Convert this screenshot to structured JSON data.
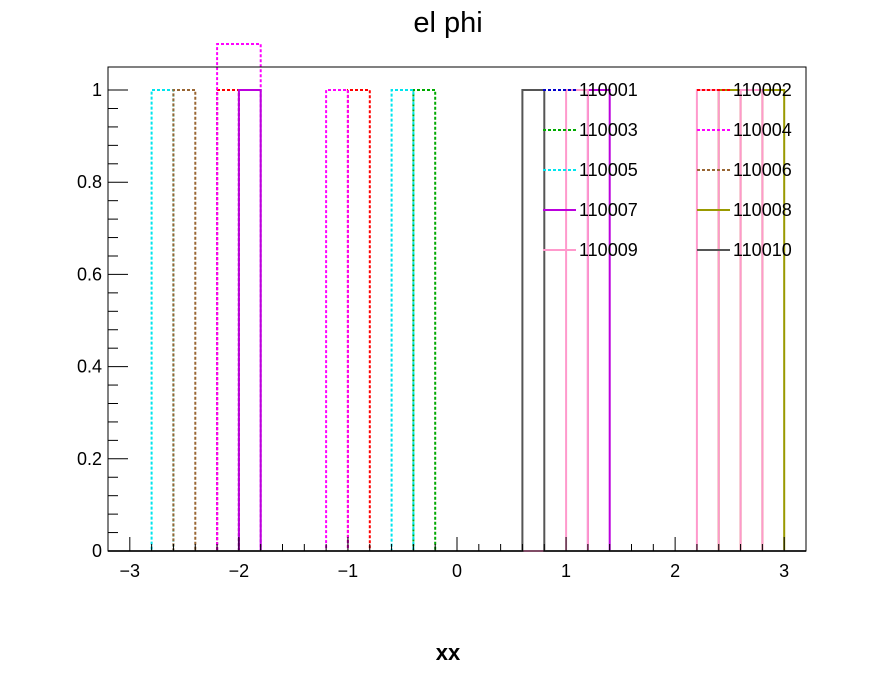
{
  "chart_data": {
    "type": "line",
    "title": "el phi",
    "xlabel": "xx",
    "ylabel": "",
    "xlim": [
      -3.2,
      3.2
    ],
    "ylim": [
      0,
      1.05
    ],
    "grid": false,
    "legend_position": "top-right",
    "x_ticks": [
      -3,
      -2,
      -1,
      0,
      1,
      2,
      3
    ],
    "x_tick_labels": [
      "−3",
      "−2",
      "−1",
      "0",
      "1",
      "2",
      "3"
    ],
    "y_ticks": [
      0,
      0.2,
      0.4,
      0.6,
      0.8,
      1
    ],
    "y_tick_labels": [
      "0",
      "0.2",
      "0.4",
      "0.6",
      "0.8",
      "1"
    ],
    "bin_edges": [
      -3.2,
      -3.0,
      -2.8,
      -2.6,
      -2.4,
      -2.2,
      -2.0,
      -1.8,
      -1.6,
      -1.4,
      -1.2,
      -1.0,
      -0.8,
      -0.6,
      -0.4,
      -0.2,
      0.0,
      0.2,
      0.4,
      0.6,
      0.8,
      1.0,
      1.2,
      1.4,
      1.6,
      1.8,
      2.0,
      2.2,
      2.4,
      2.6,
      2.8,
      3.0,
      3.2
    ],
    "series": [
      {
        "name": "110001",
        "color": "#0000cc",
        "dash": "dotted",
        "filled_bins": [
          [
            -2.2,
            -2.0,
            1
          ]
        ]
      },
      {
        "name": "110002",
        "color": "#ff0000",
        "dash": "dotted",
        "filled_bins": [
          [
            -2.2,
            -1.4,
            1
          ],
          [
            -1.0,
            -0.8,
            1
          ]
        ]
      },
      {
        "name": "110003",
        "color": "#00aa00",
        "dash": "dotted",
        "filled_bins": [
          [
            -0.4,
            -0.2,
            1
          ]
        ]
      },
      {
        "name": "110004",
        "color": "#ff00ff",
        "dash": "dotted",
        "filled_bins": [
          [
            -2.2,
            -2.0,
            1.2
          ],
          [
            -2.0,
            -1.8,
            1.2
          ],
          [
            -1.2,
            -1.0,
            1
          ]
        ]
      },
      {
        "name": "110005",
        "color": "#00e5ee",
        "dash": "dotted",
        "filled_bins": [
          [
            -2.8,
            -2.6,
            1
          ],
          [
            -0.6,
            -0.4,
            1
          ]
        ]
      },
      {
        "name": "110006",
        "color": "#996633",
        "dash": "dotted",
        "filled_bins": [
          [
            -2.6,
            -2.4,
            1
          ]
        ]
      },
      {
        "name": "110007",
        "color": "#bb00dd",
        "dash": "solid",
        "filled_bins": [
          [
            -2.0,
            -1.8,
            1
          ],
          [
            1.2,
            1.4,
            1
          ]
        ]
      },
      {
        "name": "110008",
        "color": "#999900",
        "dash": "solid",
        "filled_bins": [
          [
            2.4,
            2.6,
            1
          ],
          [
            2.8,
            3.0,
            1
          ]
        ]
      },
      {
        "name": "110009",
        "color": "#ff99cc",
        "dash": "solid",
        "filled_bins": [
          [
            1.0,
            1.2,
            1
          ],
          [
            2.2,
            2.4,
            1
          ],
          [
            2.6,
            2.8,
            1
          ]
        ]
      },
      {
        "name": "110010",
        "color": "#555555",
        "dash": "solid",
        "filled_bins": [
          [
            0.6,
            0.8,
            1
          ]
        ]
      }
    ]
  }
}
